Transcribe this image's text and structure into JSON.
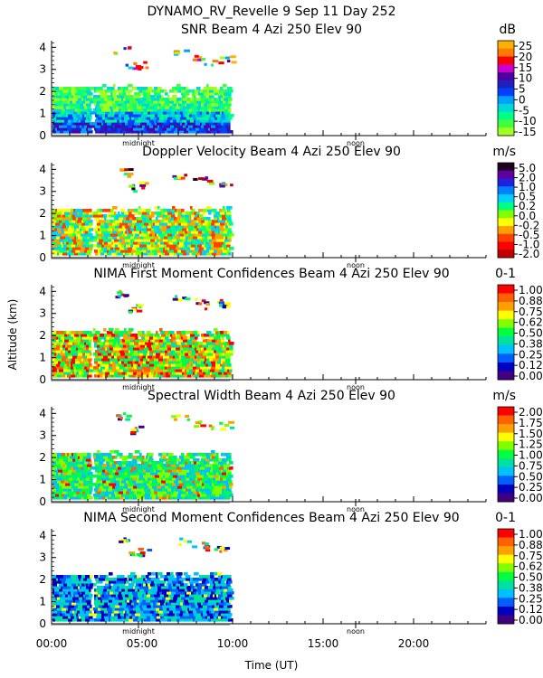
{
  "header": {
    "line1": "DYNAMO_RV_Revelle    9 Sep 11 Day 252"
  },
  "axes": {
    "ylabel": "Altitude (km)",
    "xlabel": "Time (UT)",
    "x_ticks": [
      "00:00",
      "05:00",
      "10:00",
      "15:00",
      "20:00"
    ],
    "x_tick_hours": [
      0,
      5,
      10,
      15,
      20
    ],
    "x_range_hours": [
      0,
      24
    ],
    "y_ticks": [
      "0",
      "1",
      "2",
      "3",
      "4"
    ],
    "y_range_km": [
      0,
      4.3
    ],
    "midnight_label": "midnight",
    "noon_label": "noon",
    "midnight_hour": 4.8,
    "noon_hour": 16.8,
    "data_end_hour": 9.8,
    "gap_hour": 2.2
  },
  "chart_data": [
    {
      "type": "heatmap",
      "title": "SNR Beam 4 Azi 250 Elev 90",
      "unit": "dB",
      "colorbar_labels": [
        "25",
        "20",
        "15",
        "10",
        "5",
        "0",
        "-5",
        "-10",
        "-15"
      ],
      "colorbar_colors": [
        "#ffb000",
        "#ff7a00",
        "#ff0000",
        "#cc00cc",
        "#5000a0",
        "#2020c0",
        "#0040ff",
        "#00a0ff",
        "#00d8d8",
        "#00ff88",
        "#40ff40",
        "#a0ff20"
      ],
      "ylim": [
        0,
        4.3
      ],
      "xlim_hours": [
        0,
        24
      ]
    },
    {
      "type": "heatmap",
      "title": "Doppler Velocity Beam 4 Azi 250 Elev 90",
      "unit": "m/s",
      "colorbar_labels": [
        "5.0",
        "2.0",
        "1.0",
        "0.5",
        "0.2",
        "0.0",
        "-0.2",
        "-0.5",
        "-1.0",
        "-2.0"
      ],
      "colorbar_colors": [
        "#200020",
        "#6000a0",
        "#2020e0",
        "#0080ff",
        "#00d0ff",
        "#00ff80",
        "#80ff00",
        "#ffff00",
        "#ffa000",
        "#ff4000",
        "#ff0000",
        "#c00000"
      ],
      "ylim": [
        0,
        4.3
      ],
      "xlim_hours": [
        0,
        24
      ]
    },
    {
      "type": "heatmap",
      "title": "NIMA First Moment Confidences Beam 4 Azi 250 Elev 90",
      "unit": "0-1",
      "colorbar_labels": [
        "1.00",
        "0.88",
        "0.75",
        "0.62",
        "0.50",
        "0.38",
        "0.25",
        "0.12",
        "0.00"
      ],
      "colorbar_colors": [
        "#ff0000",
        "#ff6000",
        "#ffa000",
        "#ffff00",
        "#80ff00",
        "#00ff40",
        "#00e0a0",
        "#00c0ff",
        "#0060ff",
        "#0000c0",
        "#400080"
      ],
      "ylim": [
        0,
        4.3
      ],
      "xlim_hours": [
        0,
        24
      ]
    },
    {
      "type": "heatmap",
      "title": "Spectral Width Beam 4 Azi 250 Elev 90",
      "unit": "m/s",
      "colorbar_labels": [
        "2.00",
        "1.75",
        "1.50",
        "1.25",
        "1.00",
        "0.75",
        "0.50",
        "0.25",
        "0.00"
      ],
      "colorbar_colors": [
        "#ff0000",
        "#ff6000",
        "#ffa000",
        "#ffff00",
        "#80ff00",
        "#00ff40",
        "#00e0a0",
        "#00c0ff",
        "#0060ff",
        "#0000c0",
        "#400080"
      ],
      "ylim": [
        0,
        4.3
      ],
      "xlim_hours": [
        0,
        24
      ]
    },
    {
      "type": "heatmap",
      "title": "NIMA Second Moment Confidences Beam 4 Azi 250 Elev 90",
      "unit": "0-1",
      "colorbar_labels": [
        "1.00",
        "0.88",
        "0.75",
        "0.62",
        "0.50",
        "0.38",
        "0.25",
        "0.12",
        "0.00"
      ],
      "colorbar_colors": [
        "#ff0000",
        "#ff6000",
        "#ffa000",
        "#ffff00",
        "#80ff00",
        "#00ff40",
        "#00e0a0",
        "#00c0ff",
        "#0060ff",
        "#0000c0",
        "#400080"
      ],
      "ylim": [
        0,
        4.3
      ],
      "xlim_hours": [
        0,
        24
      ]
    }
  ]
}
